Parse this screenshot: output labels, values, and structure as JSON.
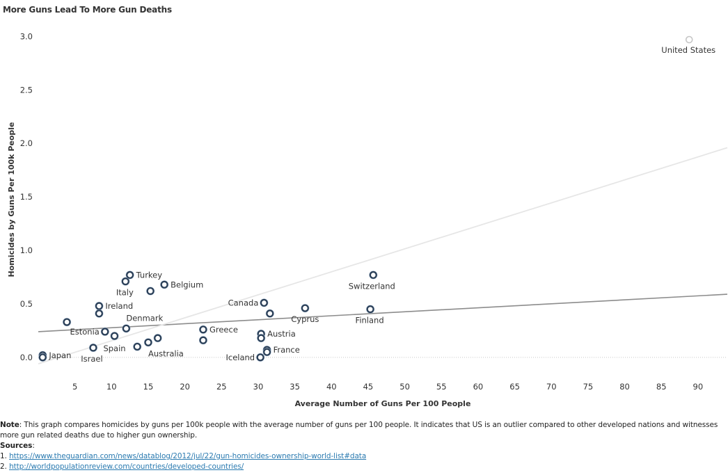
{
  "page": {
    "title": "More Guns Lead To More Gun Deaths"
  },
  "note": {
    "label": "Note",
    "text": ": This graph compares homicides by guns per 100k people with the average number of guns per 100 people. It indicates that US is an outlier compared to other developed nations and witnesses more gun related deaths due to higher gun ownership.",
    "sources_label": "Sources",
    "sources_suffix": ":",
    "source_1_prefix": "1. ",
    "source_1": "https://www.theguardian.com/news/datablog/2012/jul/22/gun-homicides-ownership-world-list#data",
    "source_2_prefix": "2. ",
    "source_2": "http://worldpopulationreview.com/countries/developed-countries/"
  },
  "chart_data": {
    "type": "scatter",
    "title": "More Guns Lead To More Gun Deaths",
    "xlabel": "Average Number of Guns Per 100 People",
    "ylabel": "Homicides by Guns Per 100k People",
    "xlim": [
      0,
      94
    ],
    "ylim": [
      -0.17,
      3.1
    ],
    "xticks": [
      5,
      10,
      15,
      20,
      25,
      30,
      35,
      40,
      45,
      50,
      55,
      60,
      65,
      70,
      75,
      80,
      85,
      90
    ],
    "xtick_labels": [
      "5",
      "10",
      "15",
      "20",
      "25",
      "30",
      "35",
      "40",
      "45",
      "50",
      "55",
      "60",
      "65",
      "70",
      "75",
      "80",
      "85",
      "90"
    ],
    "yticks": [
      0,
      0.5,
      1,
      1.5,
      2,
      2.5,
      3
    ],
    "ytick_labels": [
      "0.0",
      "0.5",
      "1.0",
      "1.5",
      "2.0",
      "2.5",
      "3.0"
    ],
    "grid": false,
    "zero_line": "dotted",
    "colors": {
      "point_fill": "#ffffff",
      "point_ring": "#2b3f57",
      "point_halo": "#9fb5cc",
      "outlier": "#c6c6c6",
      "trend_main": "#8c8c8c",
      "trend_light": "#e6e6e6"
    },
    "points": [
      {
        "x": 0.6,
        "y": 0.02,
        "label": "Japan"
      },
      {
        "x": 0.6,
        "y": 0.0,
        "label": ""
      },
      {
        "x": 3.9,
        "y": 0.33,
        "label": ""
      },
      {
        "x": 7.5,
        "y": 0.09,
        "label": "Israel"
      },
      {
        "x": 8.3,
        "y": 0.48,
        "label": "Ireland"
      },
      {
        "x": 8.3,
        "y": 0.41,
        "label": ""
      },
      {
        "x": 9.1,
        "y": 0.24,
        "label": "Estonia"
      },
      {
        "x": 10.4,
        "y": 0.2,
        "label": "Spain"
      },
      {
        "x": 11.9,
        "y": 0.71,
        "label": "Italy"
      },
      {
        "x": 12.5,
        "y": 0.77,
        "label": "Turkey"
      },
      {
        "x": 12.0,
        "y": 0.27,
        "label": "Denmark"
      },
      {
        "x": 13.5,
        "y": 0.1,
        "label": ""
      },
      {
        "x": 15.0,
        "y": 0.14,
        "label": "Australia"
      },
      {
        "x": 15.3,
        "y": 0.62,
        "label": ""
      },
      {
        "x": 16.3,
        "y": 0.18,
        "label": ""
      },
      {
        "x": 17.2,
        "y": 0.68,
        "label": "Belgium"
      },
      {
        "x": 22.5,
        "y": 0.26,
        "label": "Greece"
      },
      {
        "x": 22.5,
        "y": 0.16,
        "label": ""
      },
      {
        "x": 30.3,
        "y": 0.0,
        "label": "Iceland"
      },
      {
        "x": 30.4,
        "y": 0.22,
        "label": "Austria"
      },
      {
        "x": 30.4,
        "y": 0.18,
        "label": ""
      },
      {
        "x": 30.8,
        "y": 0.51,
        "label": "Canada"
      },
      {
        "x": 31.2,
        "y": 0.07,
        "label": "France"
      },
      {
        "x": 31.2,
        "y": 0.05,
        "label": ""
      },
      {
        "x": 31.6,
        "y": 0.41,
        "label": ""
      },
      {
        "x": 36.4,
        "y": 0.46,
        "label": "Cyprus"
      },
      {
        "x": 45.3,
        "y": 0.45,
        "label": "Finland"
      },
      {
        "x": 45.7,
        "y": 0.77,
        "label": "Switzerland"
      },
      {
        "x": 88.8,
        "y": 2.97,
        "label": "United States",
        "outlier": true
      }
    ],
    "trendlines": [
      {
        "x": [
          0,
          94
        ],
        "y": [
          0.24,
          0.59
        ],
        "style": "main"
      },
      {
        "x": [
          0,
          94
        ],
        "y": [
          -0.06,
          1.96
        ],
        "style": "light"
      }
    ]
  }
}
